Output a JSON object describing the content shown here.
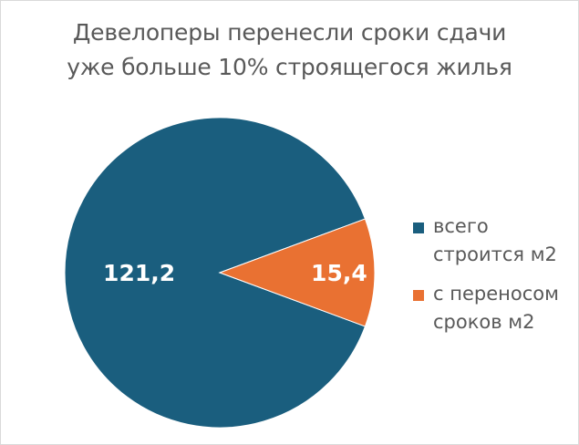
{
  "chart_data": {
    "type": "pie",
    "title_lines": [
      "Девелоперы перенесли сроки сдачи",
      "уже больше 10% строящегося жилья"
    ],
    "slices": [
      {
        "label": "всего строится м2",
        "value": 121.2,
        "display": "121,2",
        "color": "#1a5e7e"
      },
      {
        "label": "с переносом сроков м2",
        "value": 15.4,
        "display": "15,4",
        "color": "#e97132"
      }
    ],
    "legend": [
      {
        "lines": [
          "всего",
          "строится м2"
        ],
        "color": "#1a5e7e"
      },
      {
        "lines": [
          "с переносом",
          "сроков м2"
        ],
        "color": "#e97132"
      }
    ],
    "legend_position": "right"
  }
}
